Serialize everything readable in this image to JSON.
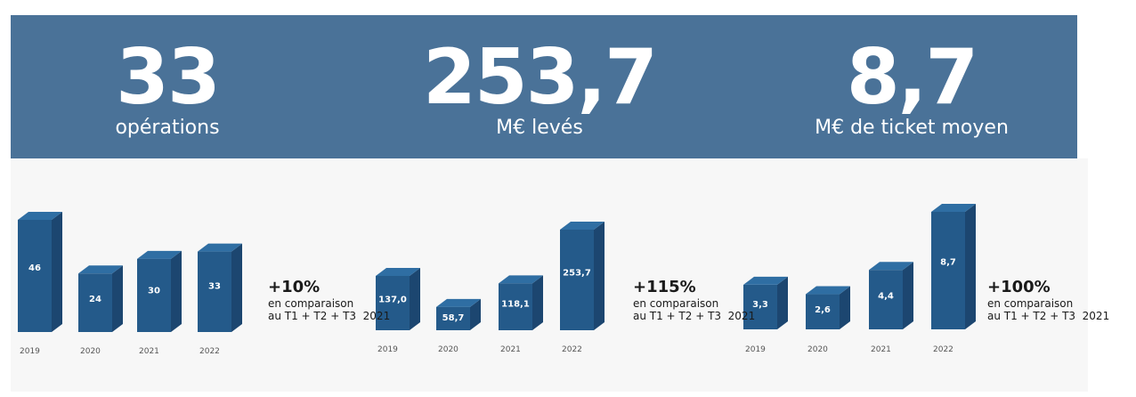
{
  "kpis": [
    {
      "value": "33",
      "label": "opérations"
    },
    {
      "value": "253,7",
      "label": "M€ levés"
    },
    {
      "value": "8,7",
      "label": "M€ de ticket moyen"
    }
  ],
  "comparisons": [
    {
      "value": "+10%",
      "line1": "en comparaison",
      "line2": "au T1 + T2 + T3  2021"
    },
    {
      "value": "+115%",
      "line1": "en comparaison",
      "line2": "au T1 + T2 + T3  2021"
    },
    {
      "value": "+100%",
      "line1": "en comparaison",
      "line2": "au T1 + T2 + T3  2021"
    }
  ],
  "colors": {
    "banner": "#4a7298",
    "bar_front": "#245a8a",
    "bar_side": "#1c4670",
    "bar_top": "#2f6ea3"
  },
  "chart_data": [
    {
      "type": "bar",
      "categories": [
        "2019",
        "2020",
        "2021",
        "2022"
      ],
      "values": [
        46,
        24,
        30,
        33
      ],
      "labels": [
        "46",
        "24",
        "30",
        "33"
      ],
      "ylim": [
        0,
        46
      ]
    },
    {
      "type": "bar",
      "categories": [
        "2019",
        "2020",
        "2021",
        "2022"
      ],
      "values": [
        137.0,
        58.7,
        118.1,
        253.7
      ],
      "labels": [
        "137,0",
        "58,7",
        "118,1",
        "253,7"
      ],
      "ylim": [
        0,
        253.7
      ]
    },
    {
      "type": "bar",
      "categories": [
        "2019",
        "2020",
        "2021",
        "2022"
      ],
      "values": [
        3.3,
        2.6,
        4.4,
        8.7
      ],
      "labels": [
        "3,3",
        "2,6",
        "4,4",
        "8,7"
      ],
      "ylim": [
        0,
        8.7
      ]
    }
  ]
}
